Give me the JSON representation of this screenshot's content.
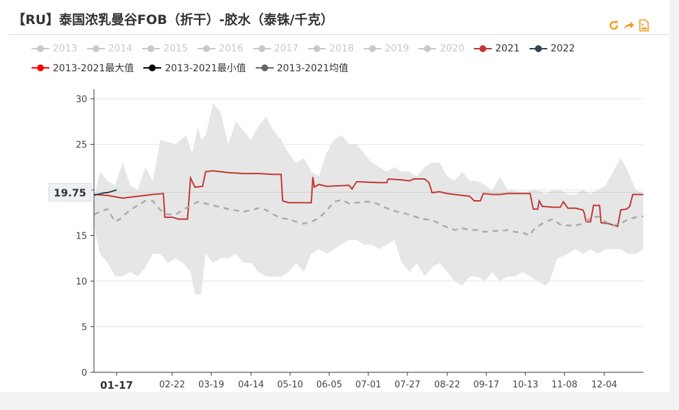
{
  "title": "【RU】泰国浓乳曼谷FOB（折干）-胶水（泰铢/千克）",
  "toolbar": [
    {
      "icon": "refresh-icon",
      "color": "#f29b1f"
    },
    {
      "icon": "share-icon",
      "color": "#f29b1f"
    },
    {
      "icon": "image-download-icon",
      "color": "#f29b1f"
    }
  ],
  "legend_rows": [
    [
      {
        "label": "2013",
        "color": "#c8c8c8",
        "active": false
      },
      {
        "label": "2014",
        "color": "#c8c8c8",
        "active": false
      },
      {
        "label": "2015",
        "color": "#c8c8c8",
        "active": false
      },
      {
        "label": "2016",
        "color": "#c8c8c8",
        "active": false
      },
      {
        "label": "2017",
        "color": "#c8c8c8",
        "active": false
      },
      {
        "label": "2018",
        "color": "#c8c8c8",
        "active": false
      },
      {
        "label": "2019",
        "color": "#c8c8c8",
        "active": false
      },
      {
        "label": "2020",
        "color": "#c8c8c8",
        "active": false
      },
      {
        "label": "2021",
        "color": "#c23531",
        "active": true
      },
      {
        "label": "2022",
        "color": "#2f4554",
        "active": true
      }
    ],
    [
      {
        "label": "2013-2021最大值",
        "color": "#ff0000",
        "active": true
      },
      {
        "label": "2013-2021最小值",
        "color": "#000000",
        "active": true
      },
      {
        "label": "2013-2021均值",
        "color": "#666666",
        "active": true
      }
    ]
  ],
  "chart_data": {
    "type": "line",
    "title": "【RU】泰国浓乳曼谷FOB（折干）-胶水（泰铢/千克）",
    "xlabel": "",
    "ylabel": "",
    "ylim": [
      0,
      30
    ],
    "yticks": [
      0,
      5,
      10,
      15,
      20,
      25,
      30
    ],
    "x_tick_labels": [
      "01-17",
      "02-22",
      "03-19",
      "04-14",
      "05-10",
      "06-05",
      "07-01",
      "07-27",
      "08-22",
      "09-17",
      "10-13",
      "11-08",
      "12-04"
    ],
    "pointer_value": "19.75",
    "grid": true,
    "legend_position": "top",
    "x_day_range": [
      1,
      365
    ],
    "band_max": {
      "name": "2013-2021最大值",
      "color": "#e6e6e6",
      "points": [
        [
          1,
          19
        ],
        [
          5,
          22
        ],
        [
          10,
          21
        ],
        [
          15,
          20.5
        ],
        [
          20,
          23
        ],
        [
          25,
          20.5
        ],
        [
          30,
          20
        ],
        [
          35,
          22.5
        ],
        [
          40,
          21
        ],
        [
          45,
          25.5
        ],
        [
          55,
          25
        ],
        [
          62,
          26
        ],
        [
          66,
          24
        ],
        [
          70,
          27
        ],
        [
          72,
          25.5
        ],
        [
          75,
          26
        ],
        [
          80,
          29.5
        ],
        [
          85,
          28.5
        ],
        [
          90,
          25
        ],
        [
          95,
          27.5
        ],
        [
          100,
          26.5
        ],
        [
          105,
          25.5
        ],
        [
          110,
          27
        ],
        [
          115,
          28
        ],
        [
          120,
          26.5
        ],
        [
          125,
          25.5
        ],
        [
          130,
          24
        ],
        [
          135,
          23
        ],
        [
          140,
          23.5
        ],
        [
          145,
          22
        ],
        [
          150,
          21.5
        ],
        [
          155,
          24
        ],
        [
          160,
          25.5
        ],
        [
          165,
          26
        ],
        [
          170,
          25
        ],
        [
          175,
          25
        ],
        [
          180,
          24
        ],
        [
          185,
          23
        ],
        [
          190,
          22.5
        ],
        [
          195,
          22
        ],
        [
          200,
          22.5
        ],
        [
          205,
          22
        ],
        [
          210,
          22
        ],
        [
          215,
          21.5
        ],
        [
          220,
          22.5
        ],
        [
          225,
          23
        ],
        [
          230,
          23
        ],
        [
          235,
          21.5
        ],
        [
          240,
          21
        ],
        [
          245,
          22
        ],
        [
          250,
          21
        ],
        [
          255,
          21
        ],
        [
          260,
          20.5
        ],
        [
          265,
          20
        ],
        [
          270,
          21.5
        ],
        [
          275,
          20
        ],
        [
          280,
          20
        ],
        [
          285,
          19.5
        ],
        [
          290,
          20
        ],
        [
          295,
          20
        ],
        [
          300,
          19.5
        ],
        [
          305,
          20
        ],
        [
          310,
          20
        ],
        [
          315,
          19.5
        ],
        [
          320,
          19.5
        ],
        [
          325,
          20
        ],
        [
          330,
          19.5
        ],
        [
          335,
          20
        ],
        [
          340,
          20.5
        ],
        [
          345,
          22
        ],
        [
          350,
          23.5
        ],
        [
          355,
          22
        ],
        [
          360,
          20
        ],
        [
          365,
          19.5
        ]
      ]
    },
    "band_min": {
      "name": "2013-2021最小值",
      "color": "#e6e6e6",
      "points": [
        [
          1,
          16
        ],
        [
          5,
          13
        ],
        [
          10,
          12
        ],
        [
          15,
          10.5
        ],
        [
          20,
          10.5
        ],
        [
          25,
          11
        ],
        [
          30,
          10.5
        ],
        [
          35,
          11.5
        ],
        [
          40,
          13
        ],
        [
          45,
          13
        ],
        [
          50,
          12
        ],
        [
          55,
          12.5
        ],
        [
          60,
          12
        ],
        [
          65,
          11
        ],
        [
          68,
          8.5
        ],
        [
          72,
          8.5
        ],
        [
          75,
          13
        ],
        [
          80,
          12
        ],
        [
          85,
          12.5
        ],
        [
          90,
          12.5
        ],
        [
          95,
          13
        ],
        [
          100,
          12
        ],
        [
          105,
          12
        ],
        [
          110,
          11
        ],
        [
          115,
          10.5
        ],
        [
          120,
          10.5
        ],
        [
          125,
          10.5
        ],
        [
          130,
          11
        ],
        [
          135,
          12
        ],
        [
          140,
          11
        ],
        [
          145,
          13
        ],
        [
          150,
          13.5
        ],
        [
          155,
          13
        ],
        [
          160,
          13.5
        ],
        [
          165,
          14
        ],
        [
          170,
          14.5
        ],
        [
          175,
          14.5
        ],
        [
          180,
          14
        ],
        [
          185,
          14
        ],
        [
          190,
          13.5
        ],
        [
          195,
          14
        ],
        [
          200,
          14.5
        ],
        [
          205,
          12
        ],
        [
          210,
          11
        ],
        [
          215,
          12
        ],
        [
          220,
          10.5
        ],
        [
          225,
          11.5
        ],
        [
          230,
          12
        ],
        [
          235,
          11
        ],
        [
          240,
          10
        ],
        [
          245,
          9.5
        ],
        [
          250,
          10.5
        ],
        [
          255,
          10.5
        ],
        [
          260,
          10
        ],
        [
          265,
          11
        ],
        [
          270,
          10
        ],
        [
          275,
          10.5
        ],
        [
          280,
          10.5
        ],
        [
          285,
          11
        ],
        [
          290,
          10.5
        ],
        [
          295,
          10
        ],
        [
          300,
          9.5
        ],
        [
          303,
          10
        ],
        [
          308,
          12.5
        ],
        [
          315,
          13
        ],
        [
          320,
          13.5
        ],
        [
          325,
          13
        ],
        [
          330,
          13.5
        ],
        [
          335,
          13
        ],
        [
          340,
          13.5
        ],
        [
          345,
          13.5
        ],
        [
          350,
          13.5
        ],
        [
          355,
          13
        ],
        [
          360,
          13
        ],
        [
          365,
          13.5
        ]
      ]
    },
    "series": [
      {
        "name": "2021",
        "color": "#c23531",
        "points": [
          [
            1,
            19.5
          ],
          [
            10,
            19.4
          ],
          [
            20,
            19.1
          ],
          [
            25,
            19.2
          ],
          [
            40,
            19.5
          ],
          [
            47,
            19.6
          ],
          [
            48,
            17
          ],
          [
            53,
            17
          ],
          [
            57,
            16.8
          ],
          [
            63,
            16.8
          ],
          [
            65,
            21.3
          ],
          [
            68,
            20.3
          ],
          [
            73,
            20.4
          ],
          [
            75,
            22
          ],
          [
            80,
            22.1
          ],
          [
            90,
            21.9
          ],
          [
            100,
            21.8
          ],
          [
            110,
            21.8
          ],
          [
            120,
            21.7
          ],
          [
            125,
            21.7
          ],
          [
            126,
            18.8
          ],
          [
            130,
            18.6
          ],
          [
            140,
            18.6
          ],
          [
            145,
            18.6
          ],
          [
            146,
            21.4
          ],
          [
            147,
            20.3
          ],
          [
            150,
            20.6
          ],
          [
            155,
            20.4
          ],
          [
            170,
            20.5
          ],
          [
            172,
            20.1
          ],
          [
            175,
            20.9
          ],
          [
            190,
            20.8
          ],
          [
            195,
            20.8
          ],
          [
            196,
            21.2
          ],
          [
            205,
            21.1
          ],
          [
            210,
            21.0
          ],
          [
            213,
            21.2
          ],
          [
            220,
            21.2
          ],
          [
            223,
            20.8
          ],
          [
            225,
            19.7
          ],
          [
            230,
            19.8
          ],
          [
            235,
            19.6
          ],
          [
            245,
            19.4
          ],
          [
            250,
            19.3
          ],
          [
            253,
            18.8
          ],
          [
            257,
            18.8
          ],
          [
            259,
            19.6
          ],
          [
            265,
            19.5
          ],
          [
            270,
            19.5
          ],
          [
            275,
            19.6
          ],
          [
            290,
            19.6
          ],
          [
            292,
            17.9
          ],
          [
            295,
            17.9
          ],
          [
            296,
            18.8
          ],
          [
            298,
            18.2
          ],
          [
            305,
            18.1
          ],
          [
            310,
            18.1
          ],
          [
            312,
            18.7
          ],
          [
            315,
            18.0
          ],
          [
            320,
            18.0
          ],
          [
            325,
            17.8
          ],
          [
            326,
            17.4
          ],
          [
            327,
            16.5
          ],
          [
            330,
            16.5
          ],
          [
            332,
            18.3
          ],
          [
            336,
            18.3
          ],
          [
            337,
            16.4
          ],
          [
            342,
            16.3
          ],
          [
            348,
            16.0
          ],
          [
            350,
            17.8
          ],
          [
            354,
            17.9
          ],
          [
            356,
            18.2
          ],
          [
            358,
            19.5
          ],
          [
            365,
            19.5
          ]
        ]
      },
      {
        "name": "2022",
        "color": "#2f4554",
        "points": [
          [
            1,
            19.4
          ],
          [
            3,
            19.5
          ],
          [
            6,
            19.6
          ],
          [
            8,
            19.7
          ],
          [
            10,
            19.7
          ],
          [
            12,
            19.8
          ],
          [
            14,
            19.9
          ],
          [
            16,
            20.0
          ]
        ]
      },
      {
        "name": "2013-2021均值",
        "color": "#aaaaaa",
        "dashed": true,
        "points": [
          [
            1,
            17.3
          ],
          [
            5,
            17.6
          ],
          [
            10,
            17.9
          ],
          [
            15,
            16.5
          ],
          [
            18,
            16.8
          ],
          [
            25,
            17.8
          ],
          [
            30,
            18.3
          ],
          [
            35,
            18.8
          ],
          [
            40,
            18.8
          ],
          [
            45,
            17.8
          ],
          [
            50,
            17.3
          ],
          [
            55,
            17.3
          ],
          [
            60,
            17.8
          ],
          [
            65,
            18.3
          ],
          [
            70,
            18.7
          ],
          [
            75,
            18.5
          ],
          [
            80,
            18.3
          ],
          [
            90,
            17.9
          ],
          [
            100,
            17.6
          ],
          [
            105,
            17.8
          ],
          [
            110,
            18.0
          ],
          [
            115,
            17.8
          ],
          [
            120,
            17.3
          ],
          [
            125,
            16.9
          ],
          [
            130,
            16.8
          ],
          [
            135,
            16.5
          ],
          [
            140,
            16.3
          ],
          [
            145,
            16.5
          ],
          [
            150,
            16.9
          ],
          [
            155,
            17.7
          ],
          [
            160,
            18.7
          ],
          [
            165,
            18.9
          ],
          [
            170,
            18.5
          ],
          [
            175,
            18.6
          ],
          [
            180,
            18.7
          ],
          [
            185,
            18.7
          ],
          [
            190,
            18.4
          ],
          [
            195,
            18.0
          ],
          [
            200,
            17.7
          ],
          [
            205,
            17.5
          ],
          [
            210,
            17.3
          ],
          [
            215,
            17.0
          ],
          [
            220,
            16.8
          ],
          [
            225,
            16.7
          ],
          [
            230,
            16.3
          ],
          [
            235,
            15.9
          ],
          [
            240,
            15.6
          ],
          [
            245,
            15.8
          ],
          [
            250,
            15.6
          ],
          [
            255,
            15.6
          ],
          [
            260,
            15.4
          ],
          [
            265,
            15.5
          ],
          [
            270,
            15.5
          ],
          [
            275,
            15.6
          ],
          [
            280,
            15.4
          ],
          [
            285,
            15.3
          ],
          [
            290,
            15.0
          ],
          [
            292,
            15.6
          ],
          [
            295,
            16.0
          ],
          [
            300,
            16.5
          ],
          [
            305,
            16.8
          ],
          [
            310,
            16.2
          ],
          [
            315,
            16.1
          ],
          [
            320,
            16.1
          ],
          [
            325,
            16.3
          ],
          [
            330,
            16.9
          ],
          [
            335,
            17.1
          ],
          [
            340,
            16.5
          ],
          [
            345,
            16.1
          ],
          [
            350,
            16.3
          ],
          [
            355,
            16.8
          ],
          [
            360,
            17.0
          ],
          [
            365,
            17.1
          ]
        ]
      }
    ]
  }
}
